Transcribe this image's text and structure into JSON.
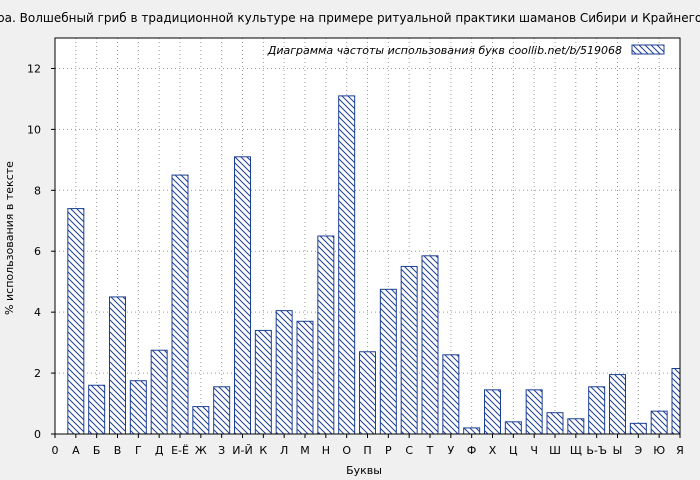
{
  "chart_data": {
    "type": "bar",
    "title": "Мухомора. Волшебный гриб в традиционной культуре на примере ритуальной практики шаманов Сибири и Крайнего Севера",
    "legend_label": "Диаграмма частоты использования букв  coollib.net/b/519068",
    "xlabel": "Буквы",
    "ylabel": "% использования в тексте",
    "ylim": [
      0,
      13
    ],
    "yticks": [
      0,
      2,
      4,
      6,
      8,
      10,
      12
    ],
    "grid": true,
    "legend_position": "top-right",
    "categories": [
      "0",
      "А",
      "Б",
      "В",
      "Г",
      "Д",
      "Е-Ё",
      "Ж",
      "З",
      "И-Й",
      "К",
      "Л",
      "М",
      "Н",
      "О",
      "П",
      "Р",
      "С",
      "Т",
      "У",
      "Ф",
      "Х",
      "Ц",
      "Ч",
      "Ш",
      "Щ",
      "Ь-Ъ",
      "Ы",
      "Э",
      "Ю",
      "Я"
    ],
    "values": [
      0,
      7.4,
      1.6,
      4.5,
      1.75,
      2.75,
      8.5,
      0.9,
      1.55,
      9.1,
      3.4,
      4.05,
      3.7,
      6.5,
      11.1,
      2.7,
      4.75,
      5.5,
      5.85,
      2.6,
      0.2,
      1.45,
      0.4,
      1.45,
      0.7,
      0.5,
      1.55,
      1.95,
      0.35,
      0.75,
      2.15
    ],
    "colors": {
      "bar_stroke": "#1c3f95",
      "bar_fill": "#ffffff",
      "background": "#f0f0f0",
      "grid": "#999999"
    }
  }
}
